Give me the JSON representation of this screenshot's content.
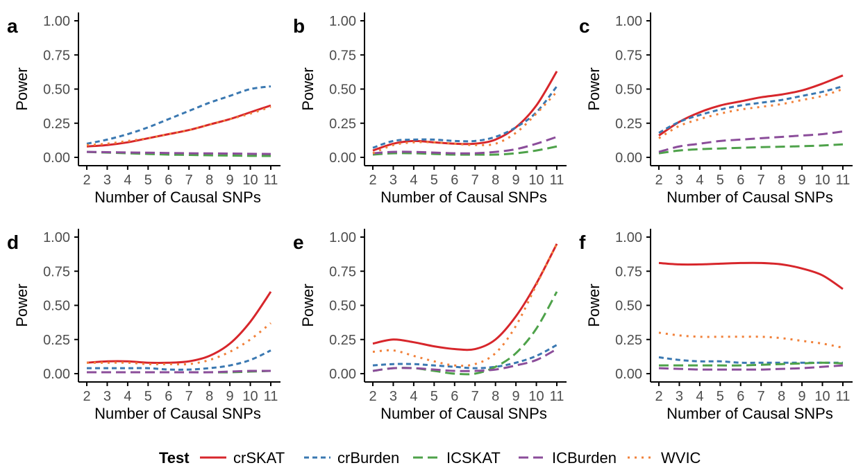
{
  "chart_data": {
    "type": "line",
    "x": [
      2,
      3,
      4,
      5,
      6,
      7,
      8,
      9,
      10,
      11
    ],
    "xticklabels": [
      "2",
      "3",
      "4",
      "5",
      "6",
      "7",
      "8",
      "9",
      "10",
      "11"
    ],
    "yticks": [
      0,
      0.25,
      0.5,
      0.75,
      1
    ],
    "yticklabels": [
      "0.00",
      "0.25",
      "0.50",
      "0.75",
      "1.00"
    ],
    "xlim": [
      2,
      11
    ],
    "ylim": [
      0,
      1
    ],
    "xlabel": "Number of Causal SNPs",
    "ylabel": "Power",
    "legend": {
      "title": "Test",
      "position": "bottom",
      "entries": [
        "crSKAT",
        "crBurden",
        "ICSKAT",
        "ICBurden",
        "WVIC"
      ]
    },
    "series_styles": [
      {
        "name": "crSKAT",
        "color": "#d7262b",
        "dash": "solid"
      },
      {
        "name": "crBurden",
        "color": "#3a78b1",
        "dash": "dashed-short"
      },
      {
        "name": "ICSKAT",
        "color": "#4ea24a",
        "dash": "dashed-long"
      },
      {
        "name": "ICBurden",
        "color": "#8b4d9a",
        "dash": "dashed-long"
      },
      {
        "name": "WVIC",
        "color": "#f1813a",
        "dash": "dotted"
      }
    ],
    "panels": [
      {
        "label": "a",
        "series": [
          {
            "name": "crSKAT",
            "values": [
              0.08,
              0.09,
              0.11,
              0.14,
              0.17,
              0.2,
              0.24,
              0.28,
              0.33,
              0.38
            ]
          },
          {
            "name": "crBurden",
            "values": [
              0.1,
              0.13,
              0.17,
              0.22,
              0.28,
              0.34,
              0.4,
              0.45,
              0.5,
              0.52
            ]
          },
          {
            "name": "ICSKAT",
            "values": [
              0.04,
              0.035,
              0.03,
              0.025,
              0.02,
              0.018,
              0.015,
              0.013,
              0.011,
              0.01
            ]
          },
          {
            "name": "ICBurden",
            "values": [
              0.04,
              0.038,
              0.036,
              0.034,
              0.032,
              0.03,
              0.029,
              0.028,
              0.026,
              0.025
            ]
          },
          {
            "name": "WVIC",
            "values": [
              0.09,
              0.1,
              0.12,
              0.14,
              0.17,
              0.2,
              0.24,
              0.28,
              0.32,
              0.37
            ]
          }
        ]
      },
      {
        "label": "b",
        "series": [
          {
            "name": "crSKAT",
            "values": [
              0.05,
              0.1,
              0.12,
              0.11,
              0.1,
              0.1,
              0.13,
              0.22,
              0.38,
              0.63
            ]
          },
          {
            "name": "crBurden",
            "values": [
              0.07,
              0.12,
              0.13,
              0.13,
              0.12,
              0.12,
              0.15,
              0.22,
              0.33,
              0.52
            ]
          },
          {
            "name": "ICSKAT",
            "values": [
              0.02,
              0.03,
              0.03,
              0.025,
              0.02,
              0.02,
              0.02,
              0.03,
              0.05,
              0.08
            ]
          },
          {
            "name": "ICBurden",
            "values": [
              0.03,
              0.04,
              0.04,
              0.035,
              0.03,
              0.03,
              0.04,
              0.06,
              0.1,
              0.15
            ]
          },
          {
            "name": "WVIC",
            "values": [
              0.03,
              0.09,
              0.11,
              0.11,
              0.1,
              0.09,
              0.1,
              0.18,
              0.32,
              0.48
            ]
          }
        ]
      },
      {
        "label": "c",
        "series": [
          {
            "name": "crSKAT",
            "values": [
              0.16,
              0.26,
              0.33,
              0.38,
              0.41,
              0.44,
              0.46,
              0.49,
              0.54,
              0.6
            ]
          },
          {
            "name": "crBurden",
            "values": [
              0.18,
              0.26,
              0.31,
              0.35,
              0.38,
              0.4,
              0.42,
              0.45,
              0.48,
              0.52
            ]
          },
          {
            "name": "ICSKAT",
            "values": [
              0.03,
              0.05,
              0.06,
              0.065,
              0.07,
              0.075,
              0.078,
              0.082,
              0.087,
              0.095
            ]
          },
          {
            "name": "ICBurden",
            "values": [
              0.04,
              0.08,
              0.1,
              0.12,
              0.13,
              0.14,
              0.15,
              0.16,
              0.17,
              0.19
            ]
          },
          {
            "name": "WVIC",
            "values": [
              0.14,
              0.23,
              0.28,
              0.32,
              0.35,
              0.37,
              0.39,
              0.42,
              0.45,
              0.5
            ]
          }
        ]
      },
      {
        "label": "d",
        "series": [
          {
            "name": "crSKAT",
            "values": [
              0.08,
              0.09,
              0.09,
              0.08,
              0.08,
              0.09,
              0.13,
              0.22,
              0.38,
              0.6
            ]
          },
          {
            "name": "crBurden",
            "values": [
              0.04,
              0.04,
              0.04,
              0.04,
              0.03,
              0.03,
              0.04,
              0.06,
              0.1,
              0.17
            ]
          },
          {
            "name": "ICSKAT",
            "values": [
              0.01,
              0.01,
              0.01,
              0.01,
              0.01,
              0.01,
              0.01,
              0.01,
              0.015,
              0.02
            ]
          },
          {
            "name": "ICBurden",
            "values": [
              0.01,
              0.01,
              0.01,
              0.01,
              0.01,
              0.01,
              0.01,
              0.015,
              0.02,
              0.02
            ]
          },
          {
            "name": "WVIC",
            "values": [
              0.08,
              0.08,
              0.08,
              0.07,
              0.07,
              0.07,
              0.1,
              0.16,
              0.25,
              0.37
            ]
          }
        ]
      },
      {
        "label": "e",
        "series": [
          {
            "name": "crSKAT",
            "values": [
              0.22,
              0.25,
              0.23,
              0.2,
              0.18,
              0.18,
              0.25,
              0.42,
              0.66,
              0.95
            ]
          },
          {
            "name": "crBurden",
            "values": [
              0.06,
              0.07,
              0.07,
              0.06,
              0.05,
              0.04,
              0.05,
              0.08,
              0.13,
              0.21
            ]
          },
          {
            "name": "ICSKAT",
            "values": [
              0.02,
              0.04,
              0.04,
              0.02,
              0.0,
              0.0,
              0.05,
              0.15,
              0.33,
              0.6
            ]
          },
          {
            "name": "ICBurden",
            "values": [
              0.02,
              0.04,
              0.04,
              0.03,
              0.02,
              0.02,
              0.03,
              0.06,
              0.1,
              0.18
            ]
          },
          {
            "name": "WVIC",
            "values": [
              0.16,
              0.17,
              0.13,
              0.09,
              0.06,
              0.07,
              0.15,
              0.35,
              0.65,
              0.95
            ]
          }
        ]
      },
      {
        "label": "f",
        "series": [
          {
            "name": "crSKAT",
            "values": [
              0.81,
              0.8,
              0.8,
              0.805,
              0.81,
              0.81,
              0.8,
              0.77,
              0.72,
              0.62
            ]
          },
          {
            "name": "crBurden",
            "values": [
              0.12,
              0.1,
              0.09,
              0.09,
              0.08,
              0.08,
              0.08,
              0.08,
              0.08,
              0.08
            ]
          },
          {
            "name": "ICSKAT",
            "values": [
              0.06,
              0.06,
              0.06,
              0.06,
              0.06,
              0.065,
              0.07,
              0.075,
              0.08,
              0.075
            ]
          },
          {
            "name": "ICBurden",
            "values": [
              0.04,
              0.035,
              0.03,
              0.03,
              0.03,
              0.03,
              0.035,
              0.04,
              0.05,
              0.06
            ]
          },
          {
            "name": "WVIC",
            "values": [
              0.3,
              0.28,
              0.27,
              0.27,
              0.27,
              0.27,
              0.26,
              0.24,
              0.22,
              0.19
            ]
          }
        ]
      }
    ]
  }
}
